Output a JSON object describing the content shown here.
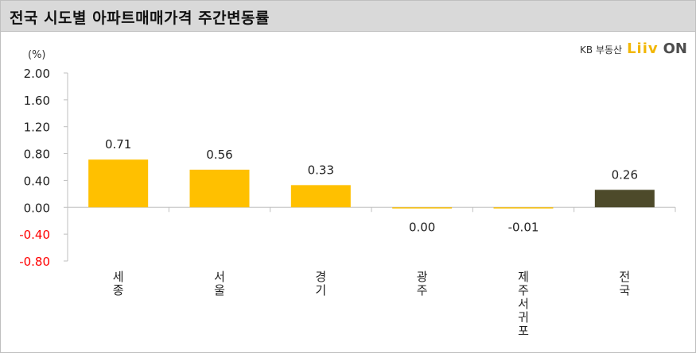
{
  "header": {
    "title": "전국 시도별 아파트매매가격 주간변동률"
  },
  "brand": {
    "kb": "KB 부동산",
    "liiv": "Liiv",
    "on": "ON"
  },
  "colors": {
    "positive": "#ffc000",
    "national": "#4d4a2a",
    "negative_tick": "#ff0000"
  },
  "chart_data": {
    "type": "bar",
    "unit_label": "(%)",
    "categories": [
      "세종",
      "서울",
      "경기",
      "광주",
      "제주서귀포",
      "전국"
    ],
    "values": [
      0.71,
      0.56,
      0.33,
      0.0,
      -0.01,
      0.26
    ],
    "data_labels": [
      "0.71",
      "0.56",
      "0.33",
      "0.00",
      "-0.01",
      "0.26"
    ],
    "yticks": [
      "2.00",
      "1.60",
      "1.20",
      "0.80",
      "0.40",
      "0.00",
      "-0.40",
      "-0.80"
    ],
    "ytick_values": [
      2.0,
      1.6,
      1.2,
      0.8,
      0.4,
      0.0,
      -0.4,
      -0.8
    ],
    "ylim": [
      -0.8,
      2.0
    ],
    "grid": false,
    "legend": "none"
  }
}
